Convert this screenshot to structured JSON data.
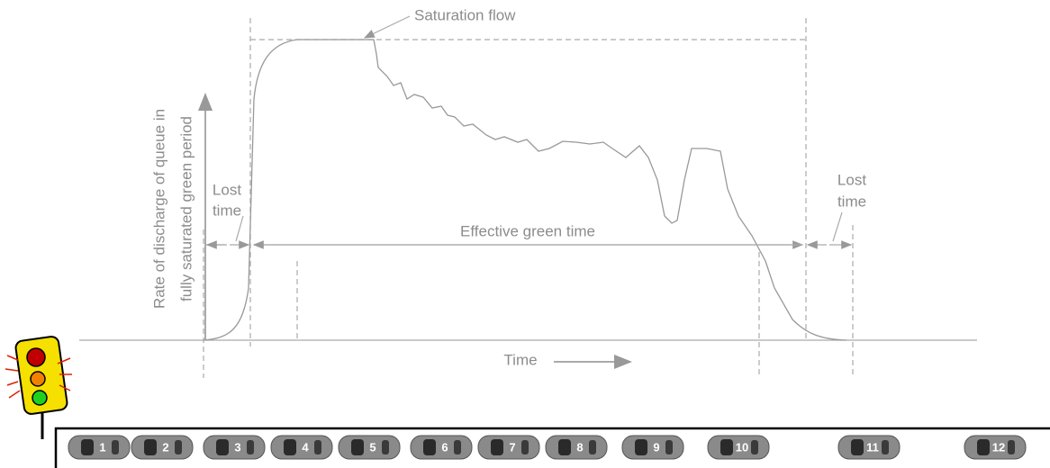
{
  "labels": {
    "saturation_flow": "Saturation flow",
    "y_axis": [
      "Rate of discharge of queue in",
      "fully saturated green period"
    ],
    "lost_time_left": [
      "Lost",
      "time"
    ],
    "effective_green_time": "Effective green time",
    "lost_time_right": [
      "Lost",
      "time"
    ],
    "time": "Time"
  },
  "cars": [
    "1",
    "2",
    "3",
    "4",
    "5",
    "6",
    "7",
    "8",
    "9",
    "10",
    "11",
    "12"
  ]
}
